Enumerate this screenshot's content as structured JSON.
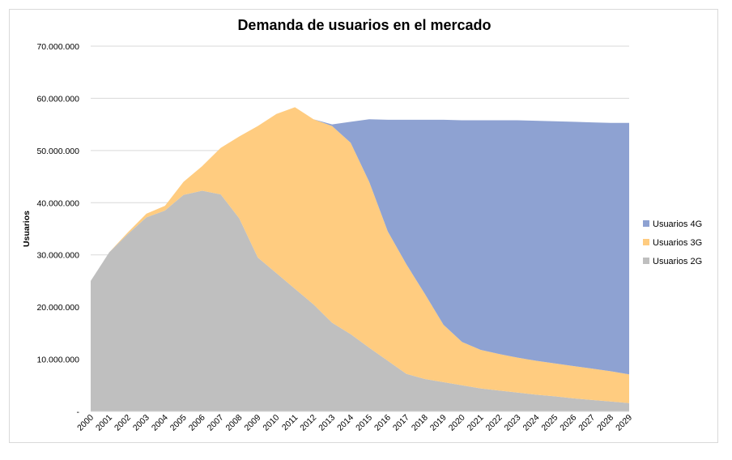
{
  "chart_data": {
    "type": "area",
    "stacked": true,
    "title": "Demanda de usuarios en el mercado",
    "xlabel": "",
    "ylabel": "Usuarios",
    "ylim": [
      0,
      70000000
    ],
    "yticks": [
      0,
      10000000,
      20000000,
      30000000,
      40000000,
      50000000,
      60000000,
      70000000
    ],
    "ytick_labels": [
      "-",
      "10.000.000",
      "20.000.000",
      "30.000.000",
      "40.000.000",
      "50.000.000",
      "60.000.000",
      "70.000.000"
    ],
    "grid": true,
    "legend_position": "right",
    "x": [
      "2000",
      "2001",
      "2002",
      "2003",
      "2004",
      "2005",
      "2006",
      "2007",
      "2008",
      "2009",
      "2010",
      "2011",
      "2012",
      "2013",
      "2014",
      "2015",
      "2016",
      "2017",
      "2018",
      "2019",
      "2020",
      "2021",
      "2022",
      "2023",
      "2024",
      "2025",
      "2026",
      "2027",
      "2028",
      "2029"
    ],
    "series": [
      {
        "name": "Usuarios 2G",
        "color": "#bfbfbf",
        "values": [
          25000000,
          30500000,
          34000000,
          37200000,
          38500000,
          41500000,
          42300000,
          41600000,
          37000000,
          29500000,
          26500000,
          23500000,
          20500000,
          17000000,
          14800000,
          12200000,
          9700000,
          7200000,
          6200000,
          5600000,
          5000000,
          4400000,
          4000000,
          3600000,
          3200000,
          2900000,
          2500000,
          2200000,
          1900000,
          1600000
        ]
      },
      {
        "name": "Usuarios 3G",
        "color": "#ffcc80",
        "values": [
          0,
          0,
          300000,
          700000,
          900000,
          2500000,
          4700000,
          8900000,
          15700000,
          25200000,
          30500000,
          34800000,
          35500000,
          37700000,
          36700000,
          31800000,
          24800000,
          21000000,
          16300000,
          11000000,
          8300000,
          7400000,
          7000000,
          6700000,
          6500000,
          6300000,
          6200000,
          6000000,
          5800000,
          5500000
        ]
      },
      {
        "name": "Usuarios 4G",
        "color": "#8ea2d2",
        "values": [
          0,
          0,
          0,
          0,
          0,
          0,
          0,
          0,
          0,
          0,
          0,
          0,
          0,
          300000,
          4000000,
          12000000,
          21400000,
          27700000,
          33400000,
          39300000,
          42500000,
          44000000,
          44800000,
          45500000,
          46000000,
          46400000,
          46800000,
          47200000,
          47600000,
          48200000
        ]
      }
    ],
    "legend_order": [
      "Usuarios 4G",
      "Usuarios 3G",
      "Usuarios 2G"
    ]
  }
}
